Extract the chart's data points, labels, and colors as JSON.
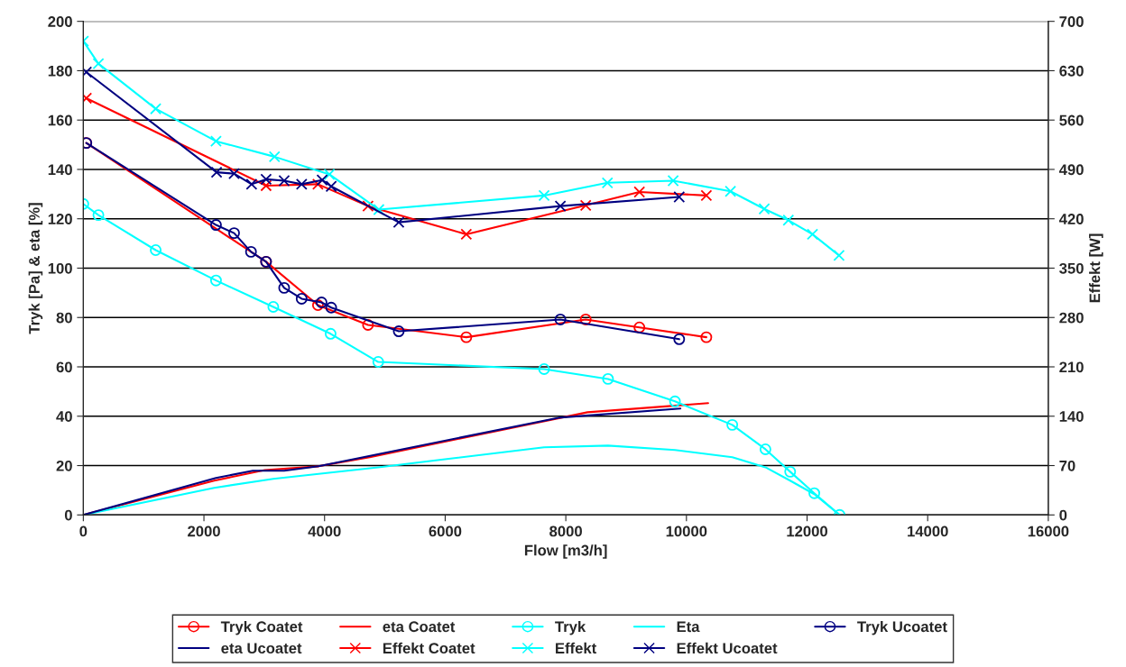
{
  "chart_data": {
    "type": "line",
    "xlabel": "Flow [m3/h]",
    "ylabel": "Tryk [Pa] & eta [%]",
    "y2label": "Effekt [W]",
    "xlim": [
      0,
      16000
    ],
    "xticks": [
      0,
      2000,
      4000,
      6000,
      8000,
      10000,
      12000,
      14000,
      16000
    ],
    "ylim": [
      0,
      200
    ],
    "yticks": [
      0,
      20,
      40,
      60,
      80,
      100,
      120,
      140,
      160,
      180,
      200
    ],
    "y2lim": [
      0,
      700
    ],
    "y2ticks": [
      0,
      70,
      140,
      210,
      280,
      350,
      420,
      490,
      560,
      630,
      700
    ],
    "grid": "y",
    "legend": "bottom",
    "series": [
      {
        "name": "Tryk Coatet",
        "color": "#ff0000",
        "marker": "circle",
        "x": [
          50,
          3030,
          3890,
          4720,
          6350,
          8330,
          9220,
          10330
        ],
        "values": [
          150.7,
          102.6,
          85,
          77,
          72,
          79.2,
          76,
          72
        ]
      },
      {
        "name": "eta Coatet",
        "color": "#ff0000",
        "marker": "none",
        "x": [
          0,
          2170,
          3010,
          3900,
          4750,
          8360,
          10360
        ],
        "values": [
          0,
          13.9,
          18.2,
          19.7,
          23.4,
          41.6,
          45.3
        ]
      },
      {
        "name": "Tryk",
        "color": "#00ffff",
        "marker": "circle",
        "x": [
          0,
          250,
          1200,
          2200,
          3150,
          4100,
          4890,
          7640,
          8700,
          9810,
          10760,
          11310,
          11720,
          12120,
          12540
        ],
        "values": [
          126,
          121.5,
          107.3,
          95,
          84.3,
          73.4,
          62,
          59.1,
          55.1,
          46,
          36.5,
          26.6,
          17.5,
          8.8,
          0
        ]
      },
      {
        "name": "Eta",
        "color": "#00ffff",
        "marker": "none",
        "x": [
          0,
          2170,
          3150,
          4890,
          7640,
          8700,
          9810,
          10760,
          11310,
          11720,
          12120,
          12540
        ],
        "values": [
          0,
          11,
          14.6,
          19.3,
          27.4,
          28.1,
          26.3,
          23.4,
          19.3,
          13.9,
          8.4,
          0
        ]
      },
      {
        "name": "Tryk Ucoatet",
        "color": "#000080",
        "marker": "circle",
        "x": [
          50,
          2200,
          2500,
          2780,
          3030,
          3330,
          3620,
          3950,
          4110,
          5230,
          7910,
          9880
        ],
        "values": [
          150.7,
          117.5,
          114.2,
          106.6,
          102.6,
          92,
          87.6,
          86.1,
          84,
          74.4,
          79.2,
          71.2
        ]
      },
      {
        "name": "eta Ucoatet",
        "color": "#000080",
        "marker": "none",
        "x": [
          0,
          2200,
          2810,
          3330,
          3900,
          7880,
          9900
        ],
        "values": [
          0,
          15,
          17.9,
          17.9,
          19.7,
          39.4,
          43.1
        ]
      },
      {
        "name": "Effekt Coatet",
        "color": "#ff0000",
        "marker": "cross",
        "axis": "y2",
        "x": [
          50,
          3030,
          3890,
          4720,
          6350,
          8330,
          9220,
          10330
        ],
        "values": [
          591,
          467,
          469,
          438,
          398,
          439,
          458,
          453
        ]
      },
      {
        "name": "Effekt",
        "color": "#00ffff",
        "marker": "cross",
        "axis": "y2",
        "x": [
          0,
          250,
          1200,
          2200,
          3170,
          4080,
          4900,
          7640,
          8690,
          9780,
          10730,
          11290,
          11690,
          12090,
          12530
        ],
        "values": [
          672,
          640,
          576,
          530,
          508,
          483,
          433,
          453,
          471,
          474,
          459,
          434,
          418,
          398,
          368
        ]
      },
      {
        "name": "Effekt Ucoatet",
        "color": "#000080",
        "marker": "cross",
        "axis": "y2",
        "x": [
          50,
          2210,
          2500,
          2790,
          3030,
          3330,
          3620,
          3960,
          4110,
          5230,
          7910,
          9880
        ],
        "values": [
          628,
          486,
          484,
          469,
          476,
          474,
          469,
          475,
          466,
          415,
          438,
          451
        ]
      }
    ]
  }
}
